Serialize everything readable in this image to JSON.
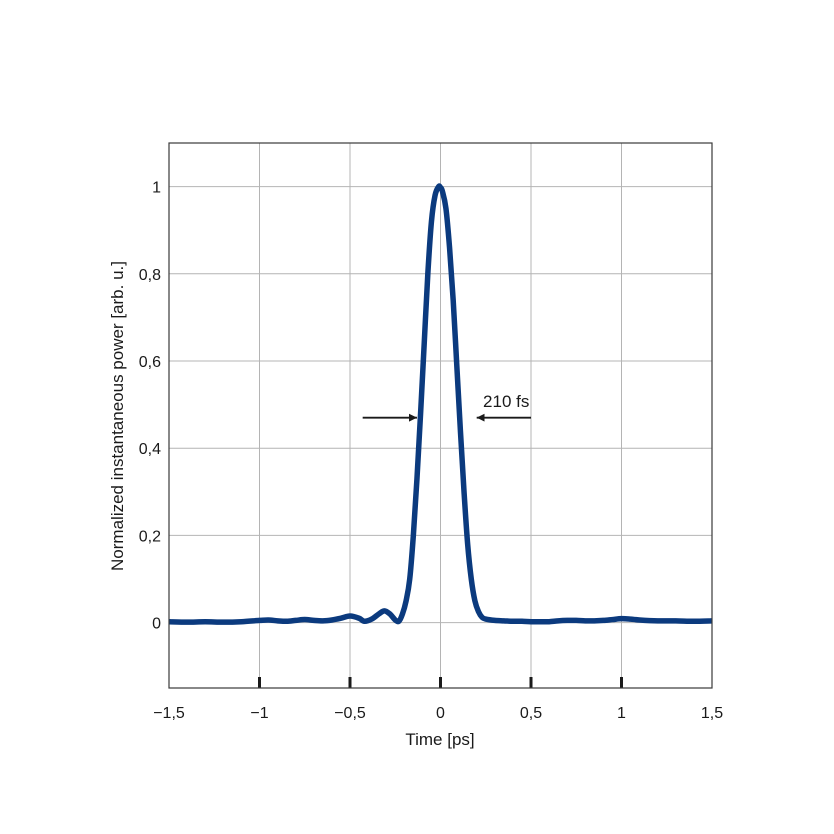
{
  "chart_data": {
    "type": "line",
    "xlabel": "Time [ps]",
    "ylabel": "Normalized instantaneous power [arb. u.]",
    "xlim": [
      -1.5,
      1.5
    ],
    "ylim": [
      -0.15,
      1.1
    ],
    "x_ticks": [
      -1.5,
      -1,
      -0.5,
      0,
      0.5,
      1,
      1.5
    ],
    "x_tick_labels": [
      "−1,5",
      "−1",
      "−0,5",
      "0",
      "0,5",
      "1",
      "1,5"
    ],
    "y_ticks": [
      0,
      0.2,
      0.4,
      0.6,
      0.8,
      1
    ],
    "y_tick_labels": [
      "0",
      "0,2",
      "0,4",
      "0,6",
      "0,8",
      "1"
    ],
    "grid": true,
    "line_color": "#0b3a7e",
    "series": [
      {
        "x": [
          -1.5,
          -1.4,
          -1.3,
          -1.2,
          -1.1,
          -1.0,
          -0.95,
          -0.9,
          -0.85,
          -0.8,
          -0.75,
          -0.7,
          -0.65,
          -0.6,
          -0.55,
          -0.5,
          -0.45,
          -0.42,
          -0.38,
          -0.34,
          -0.31,
          -0.28,
          -0.25,
          -0.23,
          -0.21,
          -0.19,
          -0.17,
          -0.15,
          -0.13,
          -0.11,
          -0.09,
          -0.07,
          -0.05,
          -0.03,
          -0.01,
          0.0,
          0.01,
          0.03,
          0.05,
          0.07,
          0.09,
          0.11,
          0.13,
          0.15,
          0.17,
          0.19,
          0.21,
          0.23,
          0.25,
          0.3,
          0.35,
          0.4,
          0.45,
          0.5,
          0.55,
          0.6,
          0.65,
          0.7,
          0.75,
          0.8,
          0.85,
          0.9,
          0.95,
          1.0,
          1.05,
          1.1,
          1.2,
          1.3,
          1.4,
          1.5
        ],
        "y": [
          0.002,
          0.001,
          0.002,
          0.001,
          0.002,
          0.005,
          0.006,
          0.004,
          0.003,
          0.005,
          0.007,
          0.005,
          0.004,
          0.006,
          0.01,
          0.015,
          0.01,
          0.003,
          0.008,
          0.02,
          0.027,
          0.02,
          0.006,
          0.003,
          0.02,
          0.05,
          0.1,
          0.2,
          0.33,
          0.48,
          0.64,
          0.8,
          0.92,
          0.98,
          1.0,
          0.998,
          0.99,
          0.95,
          0.86,
          0.74,
          0.59,
          0.44,
          0.3,
          0.18,
          0.1,
          0.05,
          0.025,
          0.012,
          0.008,
          0.005,
          0.004,
          0.003,
          0.003,
          0.002,
          0.002,
          0.002,
          0.004,
          0.005,
          0.005,
          0.004,
          0.004,
          0.005,
          0.007,
          0.009,
          0.008,
          0.006,
          0.004,
          0.004,
          0.003,
          0.004
        ]
      }
    ],
    "annotations": [
      {
        "text": "210 fs",
        "text_x": 0.235,
        "text_y": 0.495,
        "arrows": [
          {
            "from": [
              -0.43,
              0.47
            ],
            "to": [
              -0.13,
              0.47
            ]
          },
          {
            "from": [
              0.5,
              0.47
            ],
            "to": [
              0.2,
              0.47
            ]
          }
        ]
      }
    ]
  }
}
